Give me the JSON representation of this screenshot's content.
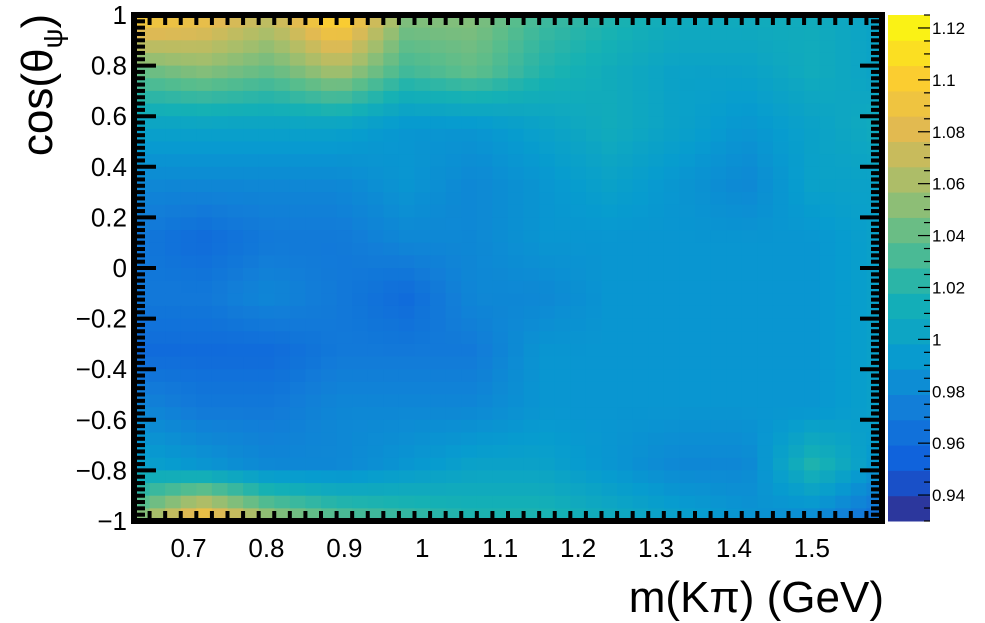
{
  "chart_data": {
    "type": "heatmap",
    "title": "",
    "xlabel": "m(Kπ) (GeV)",
    "ylabel": "cos(θψ)",
    "ylabel_base": "cos(θ",
    "ylabel_sub": "ψ",
    "ylabel_close": ")",
    "xlim": [
      0.63,
      1.59
    ],
    "ylim": [
      -1,
      1
    ],
    "x_ticks": [
      0.7,
      0.8,
      0.9,
      1.0,
      1.1,
      1.2,
      1.3,
      1.4,
      1.5
    ],
    "x_tick_labels": [
      "0.7",
      "0.8",
      "0.9",
      "1",
      "1.1",
      "1.2",
      "1.3",
      "1.4",
      "1.5"
    ],
    "y_ticks": [
      -1,
      -0.8,
      -0.6,
      -0.4,
      -0.2,
      0,
      0.2,
      0.4,
      0.6,
      0.8,
      1
    ],
    "y_tick_labels": [
      "−1",
      "−0.8",
      "−0.6",
      "−0.4",
      "−0.2",
      "0",
      "0.2",
      "0.4",
      "0.6",
      "0.8",
      "1"
    ],
    "color_range": [
      0.93,
      1.125
    ],
    "colorbar_ticks": [
      0.94,
      0.96,
      0.98,
      1.0,
      1.02,
      1.04,
      1.06,
      1.08,
      1.1,
      1.12
    ],
    "colorbar_tick_labels": [
      "0.94",
      "0.96",
      "0.98",
      "1",
      "1.02",
      "1.04",
      "1.06",
      "1.08",
      "1.1",
      "1.12"
    ],
    "colormap": "parula",
    "grid": false,
    "x_bins": 12,
    "y_bins": 10,
    "z": [
      [
        1.1,
        1.09,
        1.07,
        1.11,
        1.05,
        1.05,
        1.03,
        1.02,
        1.01,
        1.01,
        1.01,
        1.0
      ],
      [
        1.04,
        1.05,
        1.04,
        1.06,
        1.03,
        1.04,
        1.02,
        1.01,
        1.0,
        1.0,
        1.01,
        1.0
      ],
      [
        1.0,
        1.0,
        1.0,
        1.0,
        0.99,
        0.99,
        1.0,
        1.01,
        1.0,
        0.99,
        1.0,
        1.01
      ],
      [
        0.98,
        0.98,
        0.98,
        0.98,
        0.99,
        0.98,
        0.99,
        1.0,
        0.99,
        0.98,
        1.0,
        1.0
      ],
      [
        0.97,
        0.96,
        0.97,
        0.97,
        0.98,
        0.98,
        0.99,
        0.99,
        0.99,
        0.99,
        0.99,
        1.0
      ],
      [
        0.97,
        0.97,
        0.98,
        0.97,
        0.96,
        0.98,
        0.98,
        0.99,
        0.99,
        0.99,
        0.99,
        1.0
      ],
      [
        0.96,
        0.96,
        0.96,
        0.97,
        0.97,
        0.97,
        0.99,
        0.99,
        0.99,
        0.99,
        0.99,
        1.0
      ],
      [
        0.98,
        0.97,
        0.97,
        0.98,
        0.98,
        0.98,
        0.99,
        0.99,
        0.99,
        0.99,
        0.99,
        1.0
      ],
      [
        1.0,
        0.99,
        0.98,
        0.98,
        0.99,
        1.0,
        1.0,
        0.99,
        0.98,
        0.98,
        1.02,
        0.99
      ],
      [
        1.05,
        1.1,
        1.06,
        1.04,
        1.03,
        1.02,
        1.02,
        1.01,
        1.0,
        0.99,
        0.98,
        0.96
      ]
    ]
  }
}
